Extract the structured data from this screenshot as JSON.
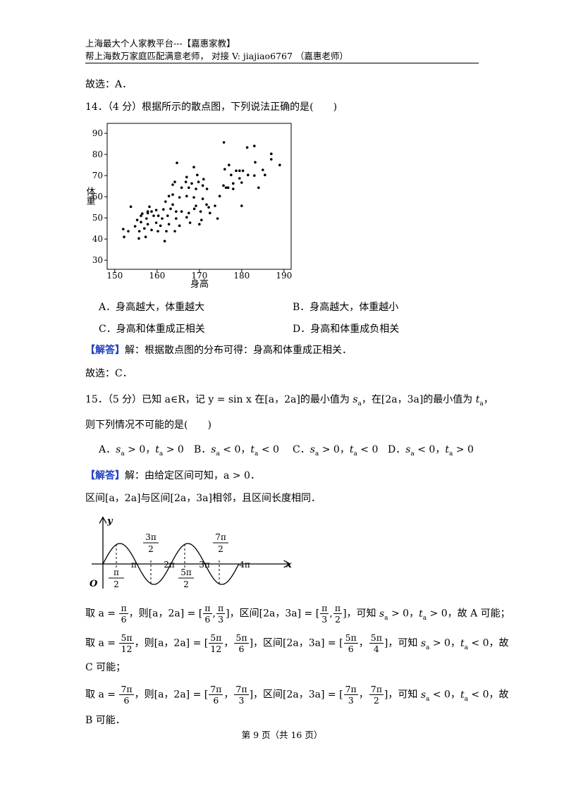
{
  "header": {
    "line1": "上海最大个人家教平台---【嘉惠家教】",
    "line2": "帮上海数万家庭匹配满意老师，  对接 V: jiajiao6767 （嘉惠老师）"
  },
  "q13_answer": "故选：A．",
  "q14": {
    "stem": "14．（4 分）根据所示的散点图，下列说法正确的是(　　)",
    "options": [
      "A．身高越大，体重越大",
      "B．身高越大，体重越小",
      "C．身高和体重成正相关",
      "D．身高和体重成负相关"
    ],
    "solution_tag": "【解答】",
    "solution": "解：根据散点图的分布可得：身高和体重成正相关．",
    "answer": "故选：C．"
  },
  "chart_data": {
    "type": "scatter",
    "x_label": "身高",
    "y_label": "体重",
    "color": "#000000",
    "xlim": [
      148.2,
      191.7
    ],
    "ylim": [
      25.7,
      94.7
    ],
    "xticks": [
      150,
      160,
      170,
      180,
      190
    ],
    "yticks": [
      30,
      40,
      50,
      60,
      70,
      80,
      90
    ],
    "x": [
      175.8,
      181.3,
      183,
      187,
      187,
      189,
      185,
      183.2,
      183,
      185.5,
      184,
      180,
      180,
      164.7,
      168.7,
      167,
      169.5,
      171,
      176,
      177,
      177.5,
      178.7,
      179.5,
      180.3,
      181.5,
      179.5,
      178,
      176.8,
      178,
      175.7,
      174.8,
      176.3,
      170.8,
      169.2,
      167.5,
      165.8,
      163.7,
      163.7,
      165.3,
      167,
      168.7,
      170.8,
      171.7,
      172.2,
      173.7,
      170.3,
      168.8,
      167.5,
      165.8,
      164.5,
      163.2,
      162.5,
      164.5,
      167,
      170,
      169.2,
      163.7,
      161.5,
      159.8,
      158.7,
      159.2,
      157.5,
      156.2,
      157.8,
      159.8,
      161.2,
      160.8,
      162.8,
      162.2,
      160.2,
      158.7,
      157,
      155.8,
      155.7,
      153.8,
      152,
      153.2,
      152.2,
      161.8,
      157.8,
      156.5,
      158.2,
      160.3,
      156.2,
      154.8,
      157.3,
      162,
      162.8,
      164.2,
      168.2,
      169.8,
      166.8,
      171.8,
      174.3,
      172.5,
      170.5,
      167.8,
      165.3,
      164.2,
      157.8,
      155.3
    ],
    "y": [
      85.7,
      83.3,
      84,
      80.3,
      77.7,
      75,
      72.7,
      76.3,
      70,
      70.3,
      64.3,
      55.7,
      66.7,
      76,
      74,
      69.3,
      70.3,
      68.3,
      73,
      75,
      70.3,
      72.3,
      72.3,
      72.3,
      70.3,
      68.7,
      66.3,
      64.3,
      63.7,
      65.3,
      60.3,
      64.3,
      65.3,
      63.7,
      64.3,
      64.3,
      65.7,
      61,
      59.7,
      60.3,
      59.7,
      59,
      56.3,
      55,
      55.7,
      53,
      54.3,
      52.3,
      53,
      53,
      54.3,
      51,
      49.7,
      50.3,
      47,
      55.7,
      56.3,
      54,
      53.7,
      53,
      51,
      49.7,
      48,
      47,
      47.7,
      49.7,
      46.3,
      47,
      43.7,
      43.7,
      44.3,
      45,
      43.7,
      40.3,
      55.3,
      44.7,
      43.7,
      41,
      39,
      53,
      52,
      55.3,
      51,
      51,
      46,
      41,
      57.7,
      60.3,
      67,
      66.3,
      67,
      67,
      63.7,
      49.7,
      52.3,
      49,
      47.7,
      46.3,
      43.7,
      52.3,
      49
    ]
  },
  "q15": {
    "stem1": [
      "15．（5 分）已知 a∈R，记 y = sin x 在[a，2a]的最小值为 ",
      {
        "b": "s",
        "s": "a"
      },
      "，在[2a，3a]的最小值为 ",
      {
        "b": "t",
        "s": "a"
      },
      "，"
    ],
    "stem2": [
      "则下列情况不可能的是(　　)"
    ],
    "options": [
      [
        "A．",
        {
          "b": "s",
          "s": "a"
        },
        " > 0，",
        {
          "b": "t",
          "s": "a"
        },
        " > 0"
      ],
      [
        "B．",
        {
          "b": "s",
          "s": "a"
        },
        " < 0，",
        {
          "b": "t",
          "s": "a"
        },
        " < 0"
      ],
      [
        "C．",
        {
          "b": "s",
          "s": "a"
        },
        " > 0，",
        {
          "b": "t",
          "s": "a"
        },
        " < 0"
      ],
      [
        "D．",
        {
          "b": "s",
          "s": "a"
        },
        " < 0，",
        {
          "b": "t",
          "s": "a"
        },
        " > 0"
      ]
    ],
    "solution_tag": "【解答】",
    "solution": [
      "解：由给定区间可知，a > 0．"
    ],
    "interval": [
      "区间[a，2a]与区间[2a，3a]相邻，且区间长度相同．"
    ],
    "take1": [
      "取 a = ",
      {
        "n": "π",
        "d": "6"
      },
      "，则[a，2a] = [",
      {
        "n": "π",
        "d": "6"
      },
      ",",
      {
        "n": "π",
        "d": "3"
      },
      "]，区间[2a，3a] = [",
      {
        "n": "π",
        "d": "3"
      },
      ",",
      {
        "n": "π",
        "d": "2"
      },
      "]，可知 ",
      {
        "b": "s",
        "s": "a"
      },
      " > 0，",
      {
        "b": "t",
        "s": "a"
      },
      " > 0，故 A 可能；"
    ],
    "take2": [
      "取 a = ",
      {
        "n": "5π",
        "d": "12"
      },
      "，则[a，2a] = [",
      {
        "n": "5π",
        "d": "12"
      },
      "，",
      {
        "n": "5π",
        "d": "6"
      },
      "]，区间[2a，3a] = [",
      {
        "n": "5π",
        "d": "6"
      },
      "，",
      {
        "n": "5π",
        "d": "4"
      },
      "]，可知 ",
      {
        "b": "s",
        "s": "a"
      },
      " > 0，",
      {
        "b": "t",
        "s": "a"
      },
      " < 0，故"
    ],
    "take2b": [
      "C 可能；"
    ],
    "take3": [
      "取 a = ",
      {
        "n": "7π",
        "d": "6"
      },
      "，则[a，2a] = [",
      {
        "n": "7π",
        "d": "6"
      },
      "，",
      {
        "n": "7π",
        "d": "3"
      },
      "]，区间[2a，3a] = [",
      {
        "n": "7π",
        "d": "3"
      },
      "，",
      {
        "n": "7π",
        "d": "2"
      },
      "]，可知 ",
      {
        "b": "s",
        "s": "a"
      },
      " < 0，",
      {
        "b": "t",
        "s": "a"
      },
      " < 0，故"
    ],
    "take3b": [
      "B 可能．"
    ]
  },
  "diagram": {
    "y": "y",
    "x": "x",
    "origin": "O",
    "pi": "π",
    "two_pi": "2π",
    "three_pi": "3π",
    "four_pi": "4π",
    "half_pi": {
      "n": "π",
      "d": "2"
    },
    "three_half_pi": {
      "n": "3π",
      "d": "2"
    },
    "five_half_pi": {
      "n": "5π",
      "d": "2"
    },
    "seven_half_pi": {
      "n": "7π",
      "d": "2"
    }
  },
  "footer": "第 9 页（共 16 页）"
}
